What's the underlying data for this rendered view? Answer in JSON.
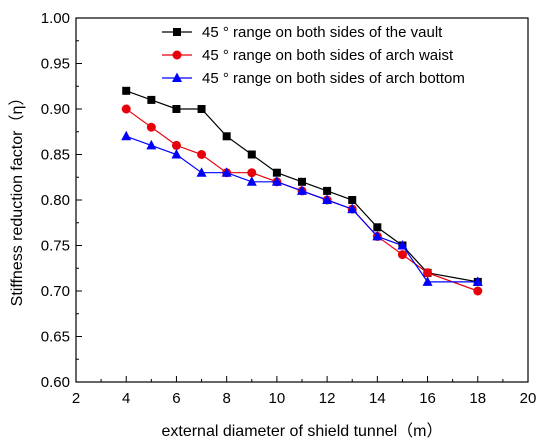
{
  "chart_data": {
    "type": "line",
    "title": "",
    "xlabel": "external diameter of shield tunnel（m）",
    "ylabel": "Stiffness reduction factor（η）",
    "xlim": [
      2,
      20
    ],
    "ylim": [
      0.6,
      1.0
    ],
    "x_ticks": [
      "2",
      "4",
      "6",
      "8",
      "10",
      "12",
      "14",
      "16",
      "18",
      "20"
    ],
    "y_ticks": [
      "0.60",
      "0.65",
      "0.70",
      "0.75",
      "0.80",
      "0.85",
      "0.90",
      "0.95",
      "1.00"
    ],
    "grid": false,
    "legend_position": "top-right",
    "series": [
      {
        "name": "45 ° range on both sides of the vault",
        "color": "#000000",
        "marker": "square",
        "x": [
          4,
          5,
          6,
          7,
          8,
          9,
          10,
          11,
          12,
          13,
          14,
          15,
          16,
          18
        ],
        "values": [
          0.92,
          0.91,
          0.9,
          0.9,
          0.87,
          0.85,
          0.83,
          0.82,
          0.81,
          0.8,
          0.77,
          0.75,
          0.72,
          0.71
        ]
      },
      {
        "name": "45 ° range on both sides of arch waist",
        "color": "#e8000b",
        "marker": "circle",
        "x": [
          4,
          5,
          6,
          7,
          8,
          9,
          10,
          11,
          12,
          13,
          14,
          15,
          16,
          18
        ],
        "values": [
          0.9,
          0.88,
          0.86,
          0.85,
          0.83,
          0.83,
          0.82,
          0.81,
          0.8,
          0.79,
          0.76,
          0.74,
          0.72,
          0.7
        ]
      },
      {
        "name": "45 ° range on both sides of arch bottom",
        "color": "#0000ff",
        "marker": "triangle",
        "x": [
          4,
          5,
          6,
          7,
          8,
          9,
          10,
          11,
          12,
          13,
          14,
          15,
          16,
          18
        ],
        "values": [
          0.87,
          0.86,
          0.85,
          0.83,
          0.83,
          0.82,
          0.82,
          0.81,
          0.8,
          0.79,
          0.76,
          0.75,
          0.71,
          0.71
        ]
      }
    ]
  }
}
